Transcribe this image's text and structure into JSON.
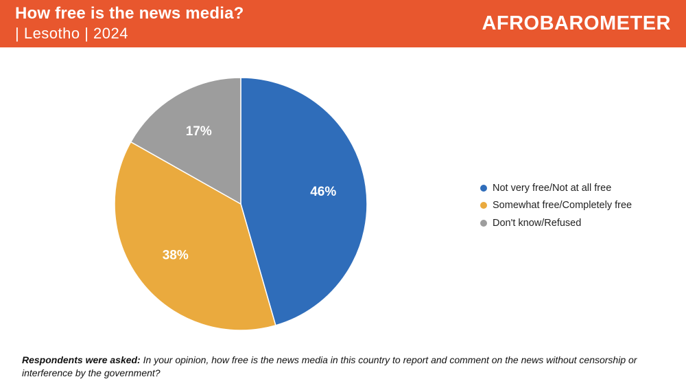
{
  "header": {
    "title": "How free is the news media?",
    "subtitle": "| Lesotho | 2024",
    "brand": "AFROBAROMETER",
    "background": "#E8572E"
  },
  "chart_data": {
    "type": "pie",
    "title": "How free is the news media?",
    "slices": [
      {
        "label": "Not very free/Not at all free",
        "value": 46,
        "display": "46%",
        "color": "#2F6DBA"
      },
      {
        "label": "Somewhat free/Completely free",
        "value": 38,
        "display": "38%",
        "color": "#EAAA3E"
      },
      {
        "label": "Don't know/Refused",
        "value": 17,
        "display": "17%",
        "color": "#9D9D9D"
      }
    ],
    "legend_position": "right",
    "start": "top",
    "direction": "clockwise"
  },
  "note": {
    "lead": "Respondents were asked:",
    "text": "In your opinion, how free is the news media in this country to report and comment on the news without censorship or interference by the government?"
  }
}
